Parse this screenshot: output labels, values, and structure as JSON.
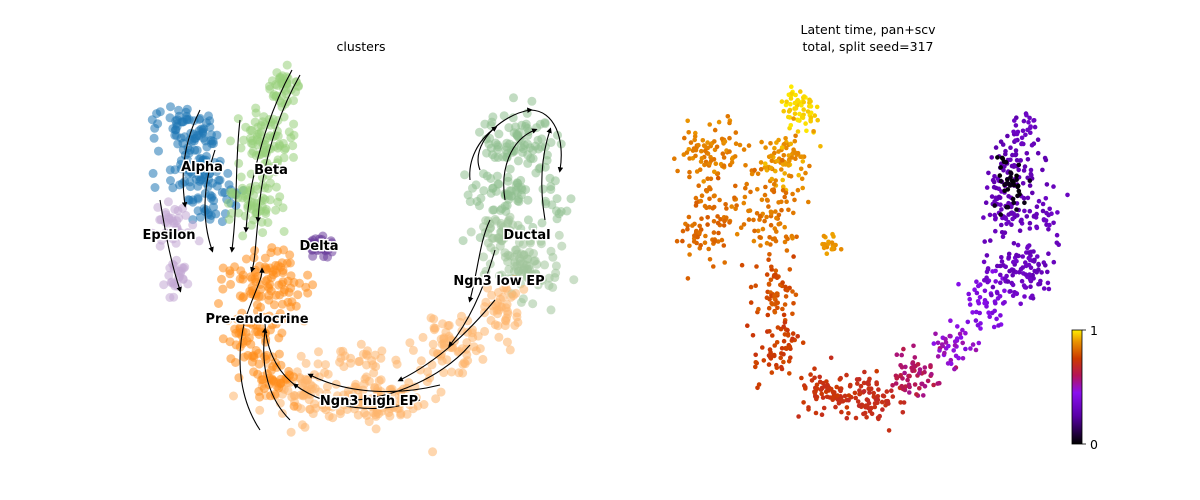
{
  "chart_data": [
    {
      "type": "scatter",
      "title": "clusters",
      "xlabel": "",
      "ylabel": "",
      "grid": false,
      "legend": "on data",
      "clusters": [
        {
          "name": "Alpha",
          "color": "#1f77b4"
        },
        {
          "name": "Beta",
          "color": "#98d07a"
        },
        {
          "name": "Delta",
          "color": "#6a3d9a"
        },
        {
          "name": "Epsilon",
          "color": "#c2a8d4"
        },
        {
          "name": "Ductal",
          "color": "#8fbf8f"
        },
        {
          "name": "Ngn3 low EP",
          "color": "#a0c49a"
        },
        {
          "name": "Ngn3 high EP",
          "color": "#fdb56b"
        },
        {
          "name": "Pre-endocrine",
          "color": "#ff8c1a"
        }
      ],
      "streamlines": true
    },
    {
      "type": "scatter",
      "title_line1": "Latent time, pan+scv",
      "title_line2": "total, split seed=317",
      "xlabel": "",
      "ylabel": "",
      "grid": false,
      "colormap": "gnuplot",
      "colorbar": {
        "min": 0,
        "max": 1,
        "tick_labels": [
          "0",
          "1"
        ]
      }
    }
  ]
}
